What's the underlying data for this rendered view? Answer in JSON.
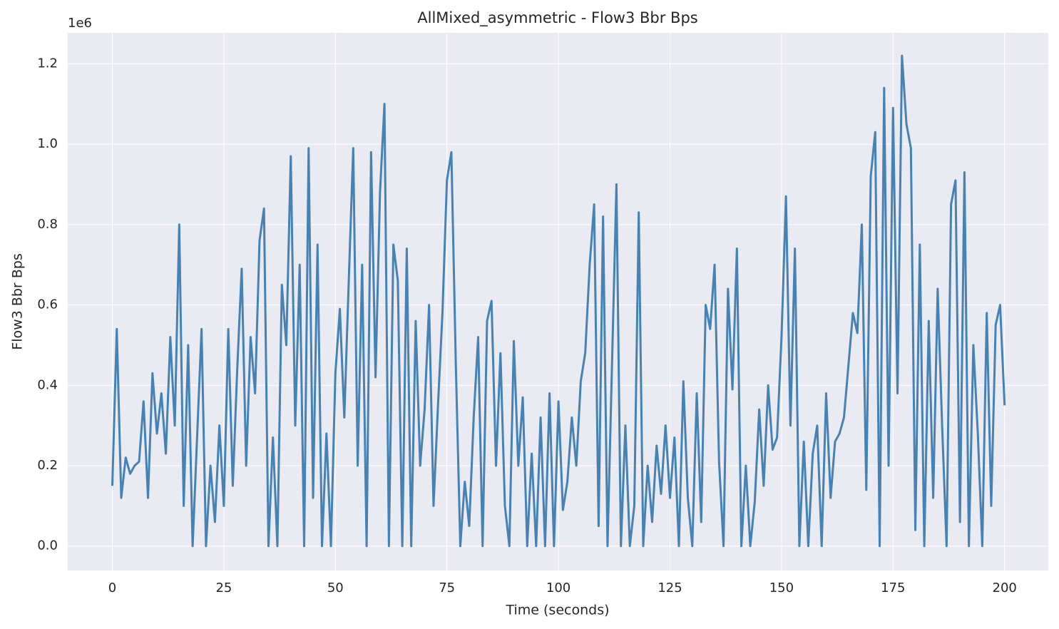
{
  "chart_data": {
    "type": "line",
    "title": "AllMixed_asymmetric - Flow3 Bbr Bps",
    "x_label": "Time (seconds)",
    "y_label": "Flow3 Bbr Bps",
    "y_offset_label": "1e6",
    "grid": true,
    "xlim": [
      -9.99,
      209.8
    ],
    "ylim": [
      -60800,
      1277000
    ],
    "xticks": [
      0,
      25,
      50,
      75,
      100,
      125,
      150,
      175,
      200
    ],
    "yticks": [
      {
        "value": 0,
        "label": "0.0"
      },
      {
        "value": 200000,
        "label": "0.2"
      },
      {
        "value": 400000,
        "label": "0.4"
      },
      {
        "value": 600000,
        "label": "0.6"
      },
      {
        "value": 800000,
        "label": "0.8"
      },
      {
        "value": 1000000,
        "label": "1.0"
      },
      {
        "value": 1200000,
        "label": "1.2"
      }
    ],
    "x": [
      0,
      1,
      2,
      3,
      4,
      5,
      6,
      7,
      8,
      9,
      10,
      11,
      12,
      13,
      14,
      15,
      16,
      17,
      18,
      19,
      20,
      21,
      22,
      23,
      24,
      25,
      26,
      27,
      28,
      29,
      30,
      31,
      32,
      33,
      34,
      35,
      36,
      37,
      38,
      39,
      40,
      41,
      42,
      43,
      44,
      45,
      46,
      47,
      48,
      49,
      50,
      51,
      52,
      53,
      54,
      55,
      56,
      57,
      58,
      59,
      60,
      61,
      62,
      63,
      64,
      65,
      66,
      67,
      68,
      69,
      70,
      71,
      72,
      73,
      74,
      75,
      76,
      77,
      78,
      79,
      80,
      81,
      82,
      83,
      84,
      85,
      86,
      87,
      88,
      89,
      90,
      91,
      92,
      93,
      94,
      95,
      96,
      97,
      98,
      99,
      100,
      101,
      102,
      103,
      104,
      105,
      106,
      107,
      108,
      109,
      110,
      111,
      112,
      113,
      114,
      115,
      116,
      117,
      118,
      119,
      120,
      121,
      122,
      123,
      124,
      125,
      126,
      127,
      128,
      129,
      130,
      131,
      132,
      133,
      134,
      135,
      136,
      137,
      138,
      139,
      140,
      141,
      142,
      143,
      144,
      145,
      146,
      147,
      148,
      149,
      150,
      151,
      152,
      153,
      154,
      155,
      156,
      157,
      158,
      159,
      160,
      161,
      162,
      163,
      164,
      165,
      166,
      167,
      168,
      169,
      170,
      171,
      172,
      173,
      174,
      175,
      176,
      177,
      178,
      179,
      180,
      181,
      182,
      183,
      184,
      185,
      186,
      187,
      188,
      189,
      190,
      191,
      192,
      193,
      194,
      195,
      196,
      197,
      198,
      199,
      200
    ],
    "series": [
      {
        "color": "#4682b4",
        "values": [
          150000,
          540000,
          120000,
          220000,
          180000,
          200000,
          210000,
          360000,
          120000,
          430000,
          280000,
          380000,
          230000,
          520000,
          300000,
          800000,
          100000,
          500000,
          0,
          270000,
          540000,
          0,
          200000,
          60000,
          300000,
          100000,
          540000,
          150000,
          440000,
          690000,
          200000,
          520000,
          380000,
          760000,
          840000,
          0,
          270000,
          0,
          650000,
          500000,
          970000,
          300000,
          700000,
          0,
          990000,
          120000,
          750000,
          0,
          280000,
          0,
          430000,
          590000,
          320000,
          660000,
          990000,
          200000,
          700000,
          0,
          980000,
          420000,
          880000,
          1100000,
          0,
          750000,
          660000,
          0,
          740000,
          0,
          560000,
          200000,
          340000,
          600000,
          100000,
          350000,
          580000,
          910000,
          980000,
          450000,
          0,
          160000,
          50000,
          320000,
          520000,
          0,
          560000,
          610000,
          200000,
          480000,
          100000,
          0,
          510000,
          200000,
          370000,
          0,
          230000,
          0,
          320000,
          0,
          380000,
          0,
          360000,
          90000,
          160000,
          320000,
          200000,
          410000,
          480000,
          700000,
          850000,
          50000,
          820000,
          0,
          450000,
          900000,
          0,
          300000,
          0,
          100000,
          830000,
          0,
          200000,
          60000,
          250000,
          130000,
          300000,
          120000,
          270000,
          0,
          410000,
          120000,
          0,
          380000,
          60000,
          600000,
          540000,
          700000,
          210000,
          0,
          640000,
          390000,
          740000,
          0,
          200000,
          0,
          110000,
          340000,
          150000,
          400000,
          240000,
          270000,
          520000,
          870000,
          300000,
          740000,
          0,
          260000,
          0,
          230000,
          300000,
          0,
          380000,
          120000,
          260000,
          280000,
          320000,
          450000,
          580000,
          530000,
          800000,
          140000,
          920000,
          1030000,
          0,
          1140000,
          200000,
          1090000,
          380000,
          1220000,
          1050000,
          990000,
          40000,
          750000,
          0,
          560000,
          120000,
          640000,
          300000,
          0,
          850000,
          910000,
          60000,
          930000,
          0,
          500000,
          280000,
          0,
          580000,
          100000,
          550000,
          600000,
          350000
        ]
      }
    ]
  }
}
